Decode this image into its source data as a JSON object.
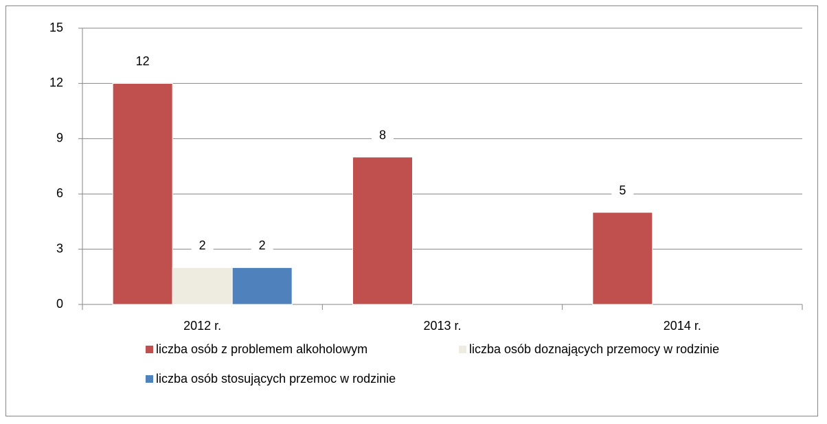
{
  "chart_data": {
    "type": "bar",
    "categories": [
      "2012 r.",
      "2013 r.",
      "2014 r."
    ],
    "series": [
      {
        "name": "liczba osób z problemem alkoholowym",
        "color": "#c0504d",
        "values": [
          12,
          8,
          5
        ]
      },
      {
        "name": "liczba osób doznających przemocy w rodzinie",
        "color": "#eeece1",
        "values": [
          2,
          null,
          null
        ]
      },
      {
        "name": "liczba osób stosujących przemoc w rodzinie",
        "color": "#4f81bd",
        "values": [
          2,
          null,
          null
        ]
      }
    ],
    "ylim": [
      0,
      15
    ],
    "yticks": [
      0,
      3,
      6,
      9,
      12,
      15
    ],
    "grid": true,
    "legend": "bottom"
  }
}
